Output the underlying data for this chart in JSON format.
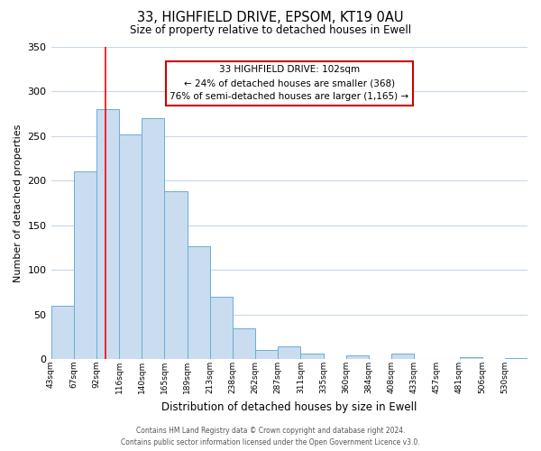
{
  "title": "33, HIGHFIELD DRIVE, EPSOM, KT19 0AU",
  "subtitle": "Size of property relative to detached houses in Ewell",
  "xlabel": "Distribution of detached houses by size in Ewell",
  "ylabel": "Number of detached properties",
  "bin_labels": [
    "43sqm",
    "67sqm",
    "92sqm",
    "116sqm",
    "140sqm",
    "165sqm",
    "189sqm",
    "213sqm",
    "238sqm",
    "262sqm",
    "287sqm",
    "311sqm",
    "335sqm",
    "360sqm",
    "384sqm",
    "408sqm",
    "433sqm",
    "457sqm",
    "481sqm",
    "506sqm",
    "530sqm"
  ],
  "bar_values": [
    60,
    210,
    280,
    252,
    270,
    188,
    127,
    70,
    35,
    11,
    15,
    6,
    0,
    4,
    0,
    6,
    0,
    0,
    2,
    0,
    1
  ],
  "bar_color": "#c9dcf0",
  "bar_edge_color": "#6aaed6",
  "ylim": [
    0,
    350
  ],
  "yticks": [
    0,
    50,
    100,
    150,
    200,
    250,
    300,
    350
  ],
  "annotation_title": "33 HIGHFIELD DRIVE: 102sqm",
  "annotation_line1": "← 24% of detached houses are smaller (368)",
  "annotation_line2": "76% of semi-detached houses are larger (1,165) →",
  "annotation_box_color": "#ffffff",
  "annotation_box_edge": "#cc0000",
  "footer_line1": "Contains HM Land Registry data © Crown copyright and database right 2024.",
  "footer_line2": "Contains public sector information licensed under the Open Government Licence v3.0.",
  "bg_color": "#ffffff",
  "grid_color": "#c8d8e8"
}
